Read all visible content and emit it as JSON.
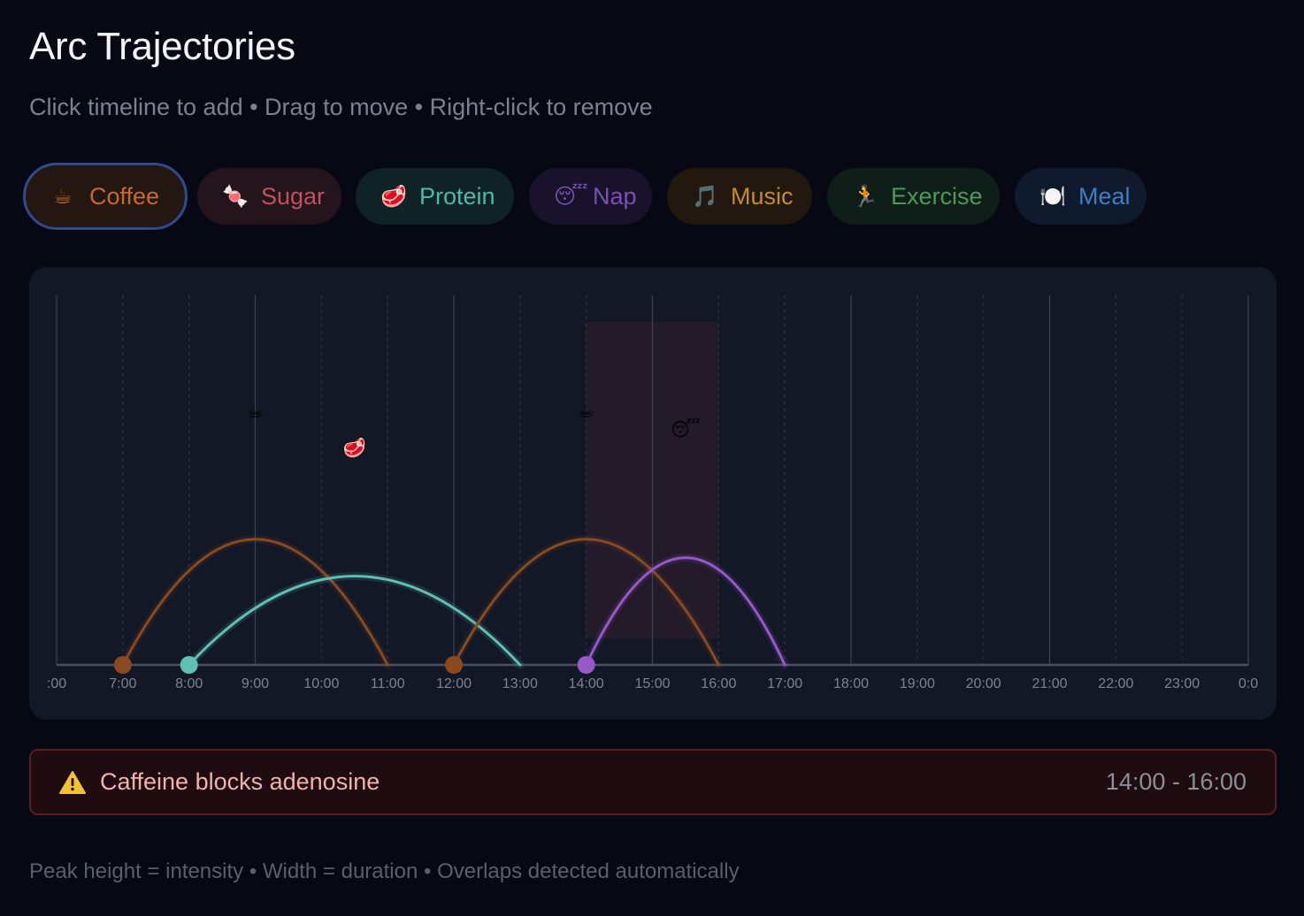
{
  "header": {
    "title": "Arc Trajectories",
    "subtitle": "Click timeline to add • Drag to move • Right-click to remove"
  },
  "chips": [
    {
      "id": "coffee",
      "icon": "☕",
      "label": "Coffee",
      "color": "#c8692c",
      "bg": "#241610",
      "active": true
    },
    {
      "id": "sugar",
      "icon": "🍬",
      "label": "Sugar",
      "color": "#c05260",
      "bg": "#24141b",
      "active": false
    },
    {
      "id": "protein",
      "icon": "🥩",
      "label": "Protein",
      "color": "#4fb8ad",
      "bg": "#0f2226",
      "active": false
    },
    {
      "id": "nap",
      "icon": "😴",
      "label": "Nap",
      "color": "#7a50b8",
      "bg": "#18132a",
      "active": false
    },
    {
      "id": "music",
      "icon": "🎵",
      "label": "Music",
      "color": "#c88a2e",
      "bg": "#22180e",
      "active": false
    },
    {
      "id": "exercise",
      "icon": "🏃",
      "label": "Exercise",
      "color": "#4c9a58",
      "bg": "#0f1e18",
      "active": false
    },
    {
      "id": "meal",
      "icon": "🍽️",
      "label": "Meal",
      "color": "#3f7dc4",
      "bg": "#0f1a2c",
      "active": false
    }
  ],
  "timeline": {
    "start_hour": 6,
    "end_hour": 24,
    "tick_labels": [
      ":00",
      "7:00",
      "8:00",
      "9:00",
      "10:00",
      "11:00",
      "12:00",
      "13:00",
      "14:00",
      "15:00",
      "16:00",
      "17:00",
      "18:00",
      "19:00",
      "20:00",
      "21:00",
      "22:00",
      "23:00",
      "0:0"
    ],
    "max_intensity": 1,
    "grid": true,
    "overlap_window": {
      "start": 14,
      "end": 16
    }
  },
  "arcs": [
    {
      "type": "coffee",
      "icon": "☕",
      "start": 7,
      "end": 11,
      "intensity": 0.34,
      "color": "#8a4a20"
    },
    {
      "type": "protein",
      "icon": "🥩",
      "start": 8,
      "end": 13,
      "intensity": 0.24,
      "color": "#5fbfb3"
    },
    {
      "type": "coffee",
      "icon": "☕",
      "start": 12,
      "end": 16,
      "intensity": 0.34,
      "color": "#8a4a20"
    },
    {
      "type": "nap",
      "icon": "😴",
      "start": 14,
      "end": 17,
      "intensity": 0.29,
      "color": "#9858c8"
    }
  ],
  "alert": {
    "icon": "warning-icon",
    "message": "Caffeine blocks adenosine",
    "range": "14:00 - 16:00"
  },
  "footer": "Peak height = intensity • Width = duration • Overlaps detected automatically"
}
